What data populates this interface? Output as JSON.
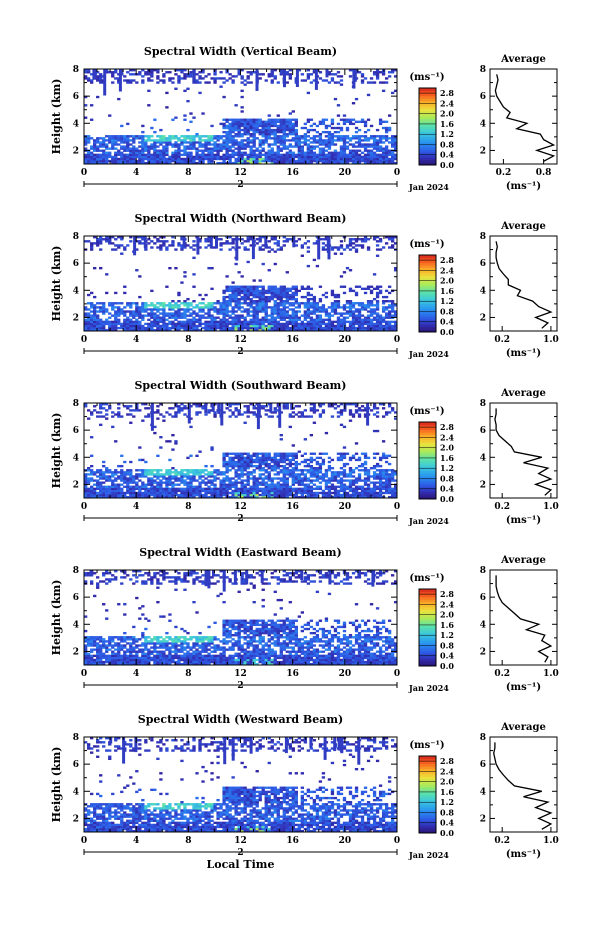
{
  "chart_data": [
    {
      "type": "heatmap",
      "title": "Spectral Width (Vertical Beam)",
      "beam": "Vertical",
      "ylabel": "Height (km)",
      "xlabel": "",
      "date_label": "Jan 2024",
      "day_label": "2",
      "xlim": [
        0,
        24
      ],
      "ylim": [
        1,
        8
      ],
      "xticks": [
        "0",
        "4",
        "8",
        "12",
        "16",
        "20",
        "0"
      ],
      "yticks": [
        "2",
        "4",
        "6",
        "8"
      ],
      "colorbar": {
        "unit": "(ms⁻¹)",
        "ticks": [
          "0.0",
          "0.4",
          "0.8",
          "1.2",
          "1.6",
          "2.0",
          "2.4",
          "2.8"
        ],
        "range": [
          0,
          3
        ]
      },
      "profile": {
        "title": "Average",
        "xlabel": "(ms⁻¹)",
        "xticks": [
          "0.2",
          "0.8"
        ],
        "xlim": [
          0,
          1.0
        ],
        "ylim": [
          1,
          8
        ],
        "yticks": [
          "2",
          "4",
          "6",
          "8"
        ],
        "heights": [
          1.2,
          1.6,
          2.0,
          2.4,
          2.8,
          3.2,
          3.6,
          4.0,
          4.4,
          4.8,
          5.2,
          5.6,
          6.0,
          6.4,
          6.8,
          7.2,
          7.6
        ],
        "values": [
          0.8,
          0.95,
          0.7,
          0.95,
          0.8,
          0.75,
          0.4,
          0.55,
          0.25,
          0.3,
          0.2,
          0.15,
          0.1,
          0.08,
          0.1,
          0.12,
          0.1
        ]
      }
    },
    {
      "type": "heatmap",
      "title": "Spectral Width (Northward Beam)",
      "beam": "Northward",
      "ylabel": "Height (km)",
      "xlabel": "",
      "date_label": "Jan 2024",
      "day_label": "2",
      "xlim": [
        0,
        24
      ],
      "ylim": [
        1,
        8
      ],
      "xticks": [
        "0",
        "4",
        "8",
        "12",
        "16",
        "20",
        "0"
      ],
      "yticks": [
        "2",
        "4",
        "6",
        "8"
      ],
      "colorbar": {
        "unit": "(ms⁻¹)",
        "ticks": [
          "0.0",
          "0.4",
          "0.8",
          "1.2",
          "1.6",
          "2.0",
          "2.4",
          "2.8"
        ],
        "range": [
          0,
          3
        ]
      },
      "profile": {
        "title": "Average",
        "xlabel": "(ms⁻¹)",
        "xticks": [
          "0.2",
          "1.0"
        ],
        "xlim": [
          0,
          1.1
        ],
        "ylim": [
          1,
          8
        ],
        "yticks": [
          "2",
          "4",
          "6",
          "8"
        ],
        "heights": [
          1.2,
          1.6,
          2.0,
          2.4,
          2.8,
          3.2,
          3.6,
          4.0,
          4.4,
          4.8,
          5.2,
          5.6,
          6.0,
          6.4,
          6.8,
          7.2,
          7.6
        ],
        "values": [
          0.85,
          0.95,
          0.75,
          1.0,
          0.8,
          0.7,
          0.45,
          0.5,
          0.3,
          0.3,
          0.22,
          0.15,
          0.12,
          0.1,
          0.1,
          0.12,
          0.1
        ]
      }
    },
    {
      "type": "heatmap",
      "title": "Spectral Width (Southward Beam)",
      "beam": "Southward",
      "ylabel": "Height (km)",
      "xlabel": "",
      "date_label": "Jan 2024",
      "day_label": "2",
      "xlim": [
        0,
        24
      ],
      "ylim": [
        1,
        8
      ],
      "xticks": [
        "0",
        "4",
        "8",
        "12",
        "16",
        "20",
        "0"
      ],
      "yticks": [
        "2",
        "4",
        "6",
        "8"
      ],
      "colorbar": {
        "unit": "(ms⁻¹)",
        "ticks": [
          "0.0",
          "0.4",
          "0.8",
          "1.2",
          "1.6",
          "2.0",
          "2.4",
          "2.8"
        ],
        "range": [
          0,
          3
        ]
      },
      "profile": {
        "title": "Average",
        "xlabel": "(ms⁻¹)",
        "xticks": [
          "0.2",
          "1.0"
        ],
        "xlim": [
          0,
          1.1
        ],
        "ylim": [
          1,
          8
        ],
        "yticks": [
          "2",
          "4",
          "6",
          "8"
        ],
        "heights": [
          1.2,
          1.6,
          2.0,
          2.4,
          2.8,
          3.2,
          3.6,
          4.0,
          4.4,
          4.8,
          5.2,
          5.6,
          6.0,
          6.4,
          6.8,
          7.2,
          7.6
        ],
        "values": [
          0.9,
          1.0,
          0.75,
          1.0,
          0.8,
          0.95,
          0.55,
          0.85,
          0.4,
          0.35,
          0.25,
          0.15,
          0.1,
          0.1,
          0.08,
          0.1,
          0.1
        ]
      }
    },
    {
      "type": "heatmap",
      "title": "Spectral Width (Eastward Beam)",
      "beam": "Eastward",
      "ylabel": "Height (km)",
      "xlabel": "",
      "date_label": "Jan 2024",
      "day_label": "2",
      "xlim": [
        0,
        24
      ],
      "ylim": [
        1,
        8
      ],
      "xticks": [
        "0",
        "4",
        "8",
        "12",
        "16",
        "20",
        "0"
      ],
      "yticks": [
        "2",
        "4",
        "6",
        "8"
      ],
      "colorbar": {
        "unit": "(ms⁻¹)",
        "ticks": [
          "0.0",
          "0.4",
          "0.8",
          "1.2",
          "1.6",
          "2.0",
          "2.4",
          "2.8"
        ],
        "range": [
          0,
          3
        ]
      },
      "profile": {
        "title": "Average",
        "xlabel": "(ms⁻¹)",
        "xticks": [
          "0.2",
          "1.0"
        ],
        "xlim": [
          0,
          1.1
        ],
        "ylim": [
          1,
          8
        ],
        "yticks": [
          "2",
          "4",
          "6",
          "8"
        ],
        "heights": [
          1.2,
          1.6,
          2.0,
          2.4,
          2.8,
          3.2,
          3.6,
          4.0,
          4.4,
          4.8,
          5.2,
          5.6,
          6.0,
          6.4,
          6.8,
          7.2,
          7.6
        ],
        "values": [
          0.9,
          0.95,
          0.8,
          1.0,
          0.85,
          0.9,
          0.6,
          0.8,
          0.5,
          0.4,
          0.3,
          0.2,
          0.15,
          0.12,
          0.1,
          0.1,
          0.1
        ]
      }
    },
    {
      "type": "heatmap",
      "title": "Spectral Width (Westward Beam)",
      "beam": "Westward",
      "ylabel": "Height (km)",
      "xlabel": "Local Time",
      "date_label": "Jan 2024",
      "day_label": "2",
      "xlim": [
        0,
        24
      ],
      "ylim": [
        1,
        8
      ],
      "xticks": [
        "0",
        "4",
        "8",
        "12",
        "16",
        "20",
        "0"
      ],
      "yticks": [
        "2",
        "4",
        "6",
        "8"
      ],
      "colorbar": {
        "unit": "(ms⁻¹)",
        "ticks": [
          "0.0",
          "0.4",
          "0.8",
          "1.2",
          "1.6",
          "2.0",
          "2.4",
          "2.8"
        ],
        "range": [
          0,
          3
        ]
      },
      "profile": {
        "title": "Average",
        "xlabel": "(ms⁻¹)",
        "xticks": [
          "0.2",
          "1.0"
        ],
        "xlim": [
          0,
          1.1
        ],
        "ylim": [
          1,
          8
        ],
        "yticks": [
          "2",
          "4",
          "6",
          "8"
        ],
        "heights": [
          1.2,
          1.6,
          2.0,
          2.4,
          2.8,
          3.2,
          3.6,
          4.0,
          4.4,
          4.8,
          5.2,
          5.6,
          6.0,
          6.4,
          6.8,
          7.2,
          7.6
        ],
        "values": [
          0.85,
          1.0,
          0.8,
          1.0,
          0.75,
          0.95,
          0.55,
          0.85,
          0.4,
          0.3,
          0.22,
          0.15,
          0.1,
          0.08,
          0.06,
          0.08,
          0.08
        ]
      }
    }
  ]
}
